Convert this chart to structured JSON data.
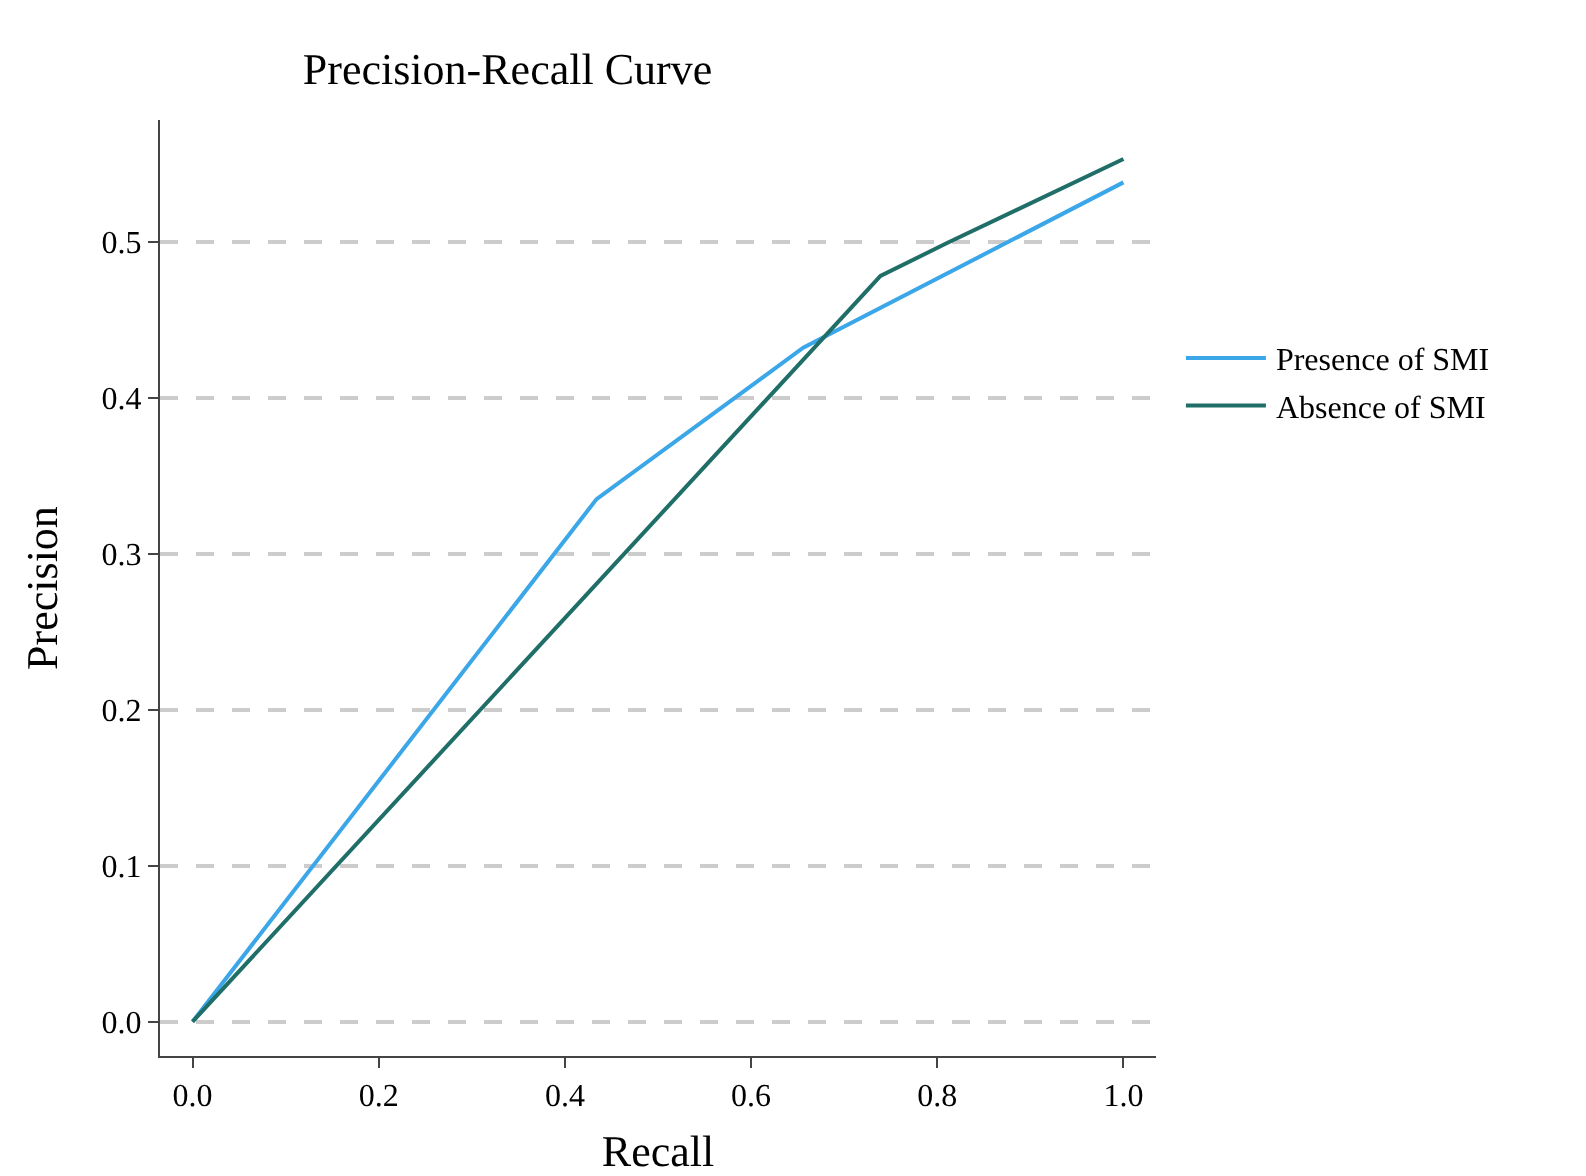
{
  "chart_data": {
    "type": "line",
    "title": "Precision-Recall Curve",
    "xlabel": "Recall",
    "ylabel": "Precision",
    "series": [
      {
        "name": "Presence of SMI",
        "color": "#3ba6e8",
        "x": [
          0,
          0.434,
          0.656,
          1.0
        ],
        "values": [
          0,
          0.335,
          0.432,
          0.538
        ]
      },
      {
        "name": "Absence of SMI",
        "color": "#1f6e68",
        "x": [
          0,
          0.739,
          0.81,
          1.0
        ],
        "values": [
          0,
          0.478,
          0.499,
          0.553
        ]
      }
    ],
    "xlim": [
      -0.035,
      1.035
    ],
    "ylim": [
      -0.022,
      0.578
    ],
    "xticks": [
      {
        "value": 0,
        "label": "0.0"
      },
      0.2,
      0.4,
      0.6,
      0.8,
      {
        "value": 1,
        "label": "1.0"
      }
    ],
    "yticks": [
      {
        "value": 0,
        "label": "0.0"
      },
      0.1,
      0.2,
      0.3,
      0.4,
      0.5
    ],
    "grid": "y",
    "legend": "right",
    "marker": "none",
    "line_style": "solid"
  }
}
